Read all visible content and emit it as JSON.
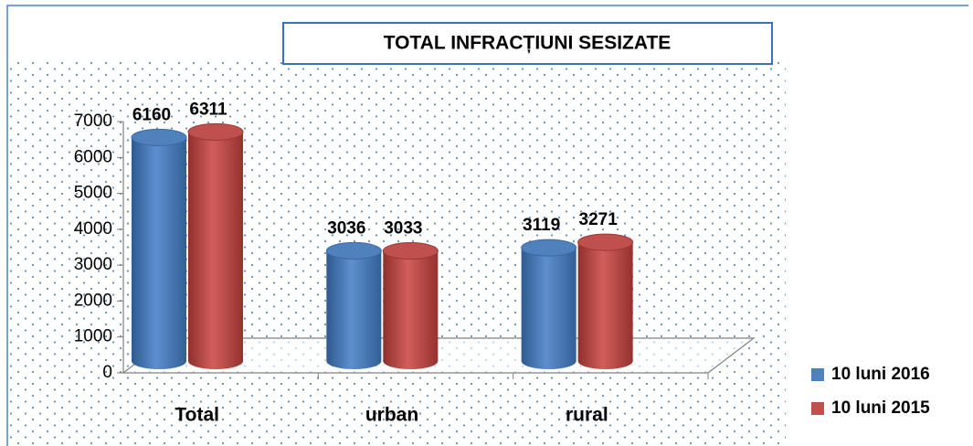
{
  "chart_data": {
    "type": "bar",
    "title": "TOTAL INFRACȚIUNI SESIZATE",
    "categories": [
      "Total",
      "urban",
      "rural"
    ],
    "series": [
      {
        "name": "10 luni 2016",
        "color": "#4f81bd",
        "values": [
          6160,
          3036,
          3119
        ]
      },
      {
        "name": "10 luni 2015",
        "color": "#c0504d",
        "values": [
          6311,
          3033,
          3271
        ]
      }
    ],
    "ylim": [
      0,
      7000
    ],
    "yticks": [
      0,
      1000,
      2000,
      3000,
      4000,
      5000,
      6000,
      7000
    ],
    "legend": "right"
  }
}
